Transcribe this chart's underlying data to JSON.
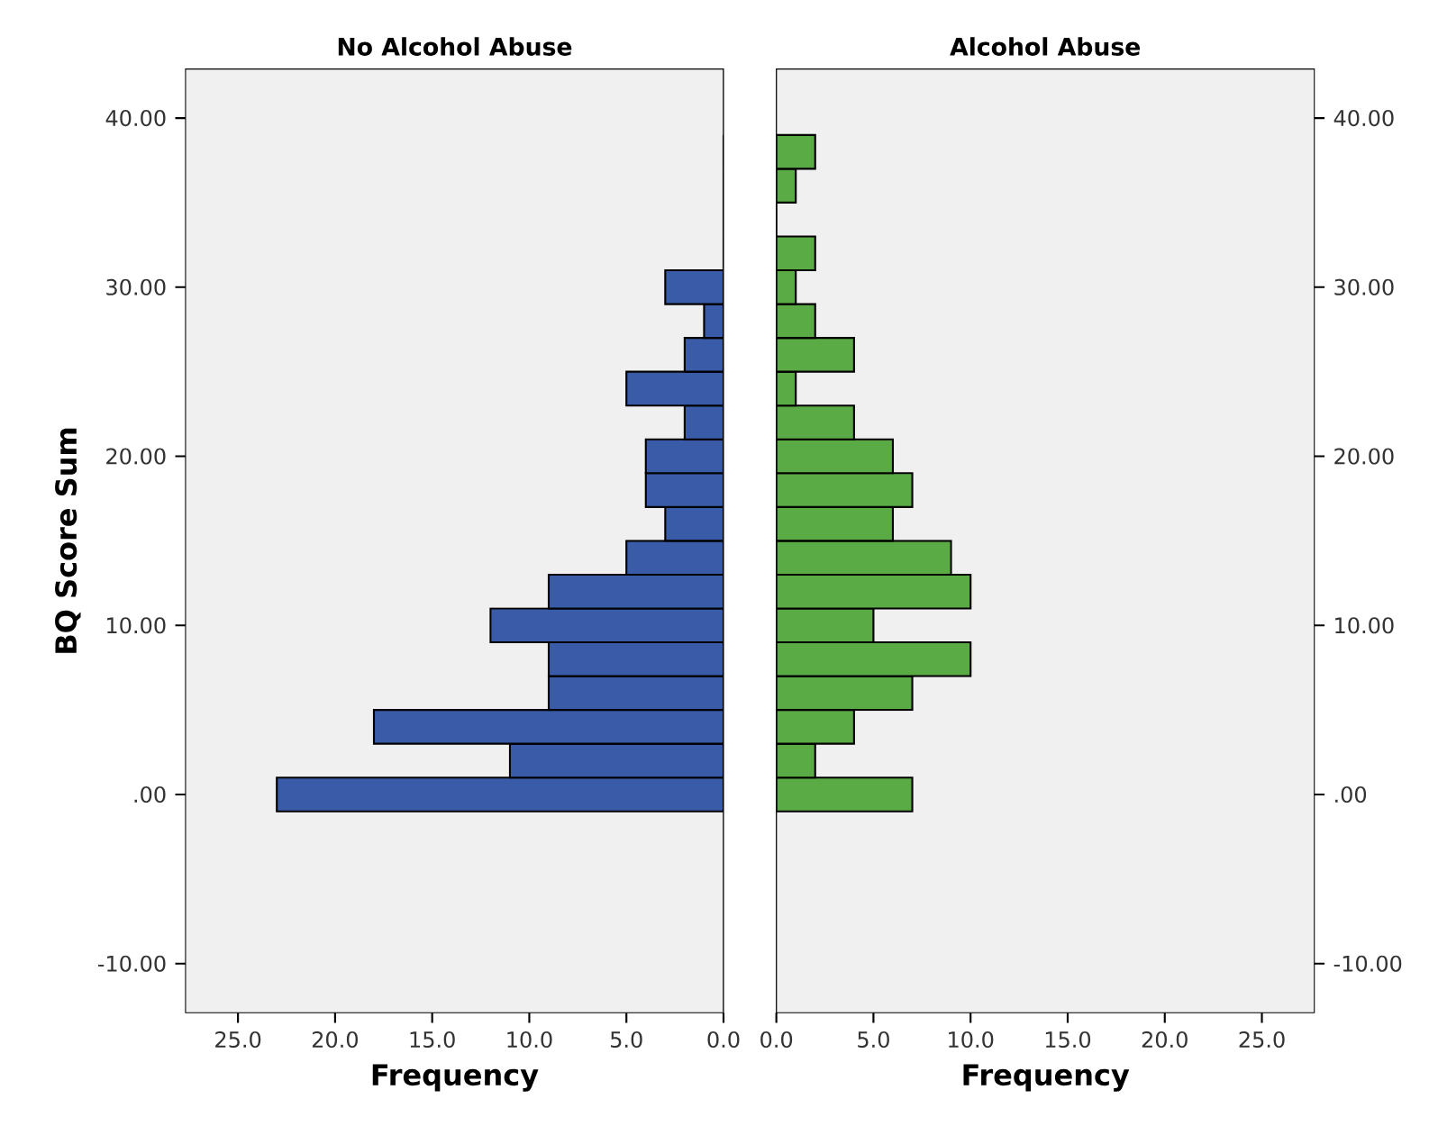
{
  "chart_data": [
    {
      "type": "histogram",
      "orientation": "horizontal",
      "title": "No Alcohol Abuse",
      "xlabel": "Frequency",
      "ylabel": "BQ Score Sum",
      "color": "#3a5ca8",
      "bins": [
        -1,
        1,
        3,
        5,
        7,
        9,
        11,
        13,
        15,
        17,
        19,
        21,
        23,
        25,
        27,
        29,
        31,
        33,
        35,
        37,
        39
      ],
      "values": [
        23,
        11,
        18,
        9,
        9,
        12,
        9,
        5,
        3,
        4,
        4,
        2,
        5,
        2,
        1,
        3,
        0,
        0,
        0,
        0
      ],
      "xlim": [
        27.7,
        0
      ],
      "ylim": [
        -12.9,
        42.9
      ],
      "xticks": [
        {
          "value": 25,
          "label": "25.0"
        },
        {
          "value": 20,
          "label": "20.0"
        },
        {
          "value": 15,
          "label": "15.0"
        },
        {
          "value": 10,
          "label": "10.0"
        },
        {
          "value": 5,
          "label": "5.0"
        },
        {
          "value": 0,
          "label": "0.0"
        }
      ],
      "yticks": [
        {
          "value": -10,
          "label": "-10.00"
        },
        {
          "value": 0,
          "label": ".00"
        },
        {
          "value": 10,
          "label": "10.00"
        },
        {
          "value": 20,
          "label": "20.00"
        },
        {
          "value": 30,
          "label": "30.00"
        },
        {
          "value": 40,
          "label": "40.00"
        }
      ]
    },
    {
      "type": "histogram",
      "orientation": "horizontal",
      "title": "Alcohol Abuse",
      "xlabel": "Frequency",
      "color": "#5aab46",
      "bins": [
        -1,
        1,
        3,
        5,
        7,
        9,
        11,
        13,
        15,
        17,
        19,
        21,
        23,
        25,
        27,
        29,
        31,
        33,
        35,
        37,
        39
      ],
      "values": [
        7,
        2,
        4,
        7,
        10,
        5,
        10,
        9,
        6,
        7,
        6,
        4,
        1,
        4,
        2,
        1,
        2,
        0,
        1,
        2
      ],
      "xlim": [
        0,
        27.7
      ],
      "ylim": [
        -12.9,
        42.9
      ],
      "xticks": [
        {
          "value": 0,
          "label": "0.0"
        },
        {
          "value": 5,
          "label": "5.0"
        },
        {
          "value": 10,
          "label": "10.0"
        },
        {
          "value": 15,
          "label": "15.0"
        },
        {
          "value": 20,
          "label": "20.0"
        },
        {
          "value": 25,
          "label": "25.0"
        }
      ],
      "yticks": [
        {
          "value": -10,
          "label": "-10.00"
        },
        {
          "value": 0,
          "label": ".00"
        },
        {
          "value": 10,
          "label": "10.00"
        },
        {
          "value": 20,
          "label": "20.00"
        },
        {
          "value": 30,
          "label": "30.00"
        },
        {
          "value": 40,
          "label": "40.00"
        }
      ]
    }
  ]
}
